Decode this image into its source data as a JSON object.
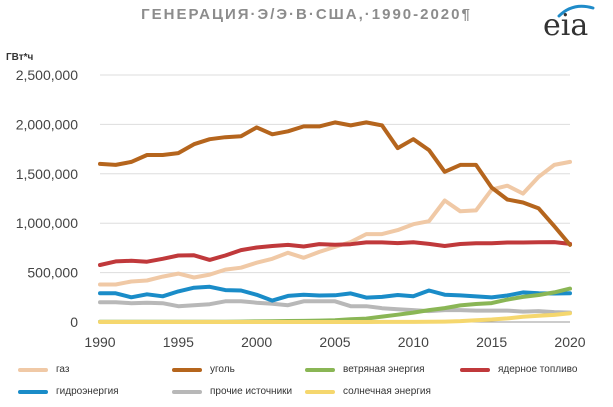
{
  "title": "ГЕНЕРАЦИЯ·Э/Э·В·США,·1990-2020¶",
  "logo": {
    "text": "eia",
    "icon": "eia-logo-icon",
    "arc_color": "#1f8bc9"
  },
  "chart_data": {
    "type": "line",
    "title": "ГЕНЕРАЦИЯ·Э/Э·В·США,·1990-2020¶",
    "ylabel": "ГВт*ч",
    "xlabel": "",
    "ylim": [
      0,
      2500000
    ],
    "xlim": [
      1990,
      2020
    ],
    "y_ticks": [
      "0",
      "500,000",
      "1,000,000",
      "1,500,000",
      "2,000,000",
      "2,500,000"
    ],
    "y_tick_values": [
      0,
      500000,
      1000000,
      1500000,
      2000000,
      2500000
    ],
    "x_ticks": [
      "1990",
      "1995",
      "2000",
      "2005",
      "2010",
      "2015",
      "2020"
    ],
    "x_tick_values": [
      1990,
      1995,
      2000,
      2005,
      2010,
      2015,
      2020
    ],
    "grid": "horizontal",
    "legend_position": "bottom",
    "x": [
      1990,
      1991,
      1992,
      1993,
      1994,
      1995,
      1996,
      1997,
      1998,
      1999,
      2000,
      2001,
      2002,
      2003,
      2004,
      2005,
      2006,
      2007,
      2008,
      2009,
      2010,
      2011,
      2012,
      2013,
      2014,
      2015,
      2016,
      2017,
      2018,
      2019,
      2020
    ],
    "series": [
      {
        "name": "газ",
        "color": "#f0c9a6",
        "values": [
          380000,
          380000,
          410000,
          420000,
          460000,
          490000,
          450000,
          480000,
          530000,
          550000,
          600000,
          640000,
          700000,
          650000,
          710000,
          760000,
          810000,
          890000,
          890000,
          930000,
          990000,
          1020000,
          1230000,
          1120000,
          1130000,
          1340000,
          1380000,
          1300000,
          1470000,
          1590000,
          1620000
        ]
      },
      {
        "name": "уголь",
        "color": "#b5651d",
        "values": [
          1600000,
          1590000,
          1620000,
          1690000,
          1690000,
          1710000,
          1800000,
          1850000,
          1870000,
          1880000,
          1970000,
          1900000,
          1930000,
          1980000,
          1980000,
          2020000,
          1990000,
          2020000,
          1990000,
          1760000,
          1850000,
          1740000,
          1520000,
          1590000,
          1590000,
          1360000,
          1240000,
          1210000,
          1150000,
          970000,
          780000
        ]
      },
      {
        "name": "ветряная энергия",
        "color": "#8ab655",
        "values": [
          3000,
          3000,
          3000,
          3000,
          3000,
          3000,
          3000,
          3000,
          3000,
          4000,
          6000,
          7000,
          10000,
          11000,
          14000,
          18000,
          27000,
          34000,
          55000,
          74000,
          95000,
          120000,
          141000,
          168000,
          182000,
          191000,
          227000,
          254000,
          273000,
          300000,
          338000
        ]
      },
      {
        "name": "ядерное топливо",
        "color": "#c0393b",
        "values": [
          577000,
          613000,
          619000,
          610000,
          640000,
          673000,
          675000,
          629000,
          673000,
          728000,
          754000,
          769000,
          780000,
          764000,
          788000,
          782000,
          787000,
          806000,
          806000,
          799000,
          807000,
          790000,
          769000,
          789000,
          797000,
          797000,
          805000,
          805000,
          807000,
          809000,
          790000
        ]
      },
      {
        "name": "гидроэнергия",
        "color": "#1a8cc8",
        "values": [
          290000,
          290000,
          250000,
          280000,
          260000,
          310000,
          347000,
          356000,
          323000,
          319000,
          275000,
          217000,
          264000,
          275000,
          268000,
          270000,
          289000,
          247000,
          254000,
          273000,
          260000,
          319000,
          276000,
          269000,
          259000,
          249000,
          268000,
          300000,
          292000,
          288000,
          291000
        ]
      },
      {
        "name": "прочие источники",
        "color": "#b8b8b8",
        "values": [
          200000,
          200000,
          190000,
          195000,
          190000,
          160000,
          170000,
          180000,
          210000,
          210000,
          195000,
          185000,
          170000,
          210000,
          210000,
          210000,
          160000,
          160000,
          140000,
          130000,
          120000,
          110000,
          120000,
          120000,
          115000,
          115000,
          115000,
          105000,
          110000,
          100000,
          95000
        ]
      },
      {
        "name": "солнечная энергия",
        "color": "#f5d76e",
        "values": [
          0,
          0,
          0,
          0,
          0,
          0,
          0,
          0,
          0,
          0,
          0,
          0,
          0,
          0,
          0,
          0,
          0,
          0,
          1000,
          1000,
          1000,
          2000,
          4000,
          9000,
          18000,
          25000,
          36000,
          53000,
          64000,
          72000,
          89000
        ]
      }
    ]
  }
}
